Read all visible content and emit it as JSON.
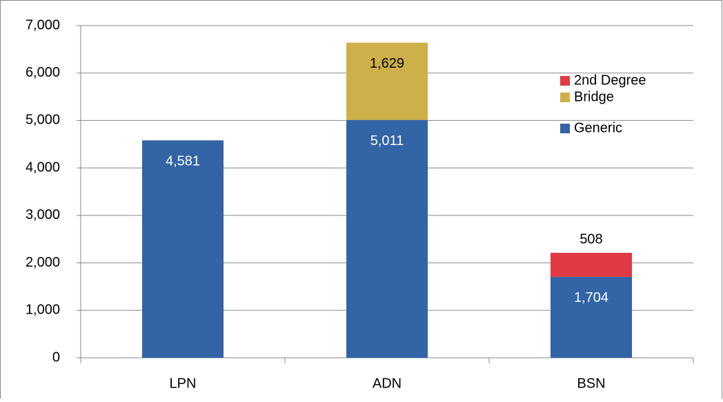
{
  "chart_data": {
    "type": "stacked-bar",
    "categories": [
      "LPN",
      "ADN",
      "BSN"
    ],
    "series": [
      {
        "name": "Generic",
        "color": "#3264a6",
        "values": [
          4581,
          5011,
          1704
        ],
        "value_labels": [
          "4,581",
          "5,011",
          "1,704"
        ]
      },
      {
        "name": "Bridge",
        "color": "#cdb04a",
        "values": [
          null,
          1629,
          null
        ],
        "value_labels": [
          null,
          "1,629",
          null
        ]
      },
      {
        "name": "2nd Degree",
        "color": "#e03a44",
        "values": [
          null,
          null,
          508
        ],
        "value_labels": [
          null,
          null,
          "508"
        ]
      }
    ],
    "ylim": [
      0,
      7000
    ],
    "yticks": [
      0,
      {
        "value": 1000,
        "label": "1,000"
      },
      {
        "value": 2000,
        "label": "2,000"
      },
      {
        "value": 3000,
        "label": "3,000"
      },
      {
        "value": 4000,
        "label": "4,000"
      },
      {
        "value": 5000,
        "label": "5,000"
      },
      {
        "value": 6000,
        "label": "6,000"
      },
      {
        "value": 7000,
        "label": "7,000"
      }
    ],
    "grid": true,
    "legend": "right"
  }
}
